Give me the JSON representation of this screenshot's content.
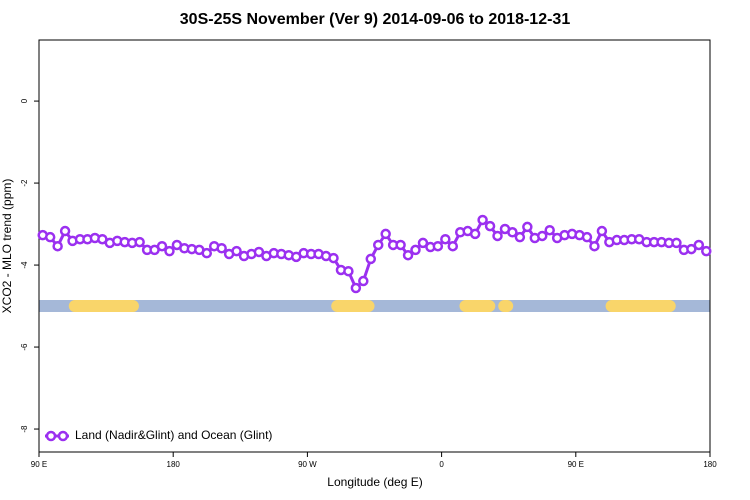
{
  "chart_data": {
    "type": "line",
    "title": "30S-25S November (Ver 9)   2014-09-06 to 2018-12-31",
    "x_label": "Longitude (deg E)",
    "y_label": "XCO2 - MLO trend (ppm)",
    "xlim": [
      90,
      540
    ],
    "ylim": [
      -8.56,
      1.49
    ],
    "xticks": [
      {
        "value": 90,
        "label": "90 E"
      },
      180,
      {
        "value": 270,
        "label": "90 W"
      },
      {
        "value": 360,
        "label": "0"
      },
      {
        "value": 450,
        "label": "90 E"
      },
      {
        "value": 540,
        "label": "180"
      }
    ],
    "yticks": [
      0,
      -2,
      -4,
      -6,
      -8
    ],
    "legend": "bottom-left",
    "x": [
      92.5,
      97.5,
      102.5,
      107.5,
      112.5,
      117.5,
      122.5,
      127.5,
      132.5,
      137.5,
      142.5,
      147.5,
      152.5,
      157.5,
      162.5,
      167.5,
      172.5,
      177.5,
      182.5,
      187.5,
      192.5,
      197.5,
      202.5,
      207.5,
      212.5,
      217.5,
      222.5,
      227.5,
      232.5,
      237.5,
      242.5,
      247.5,
      252.5,
      257.5,
      262.5,
      267.5,
      272.5,
      277.5,
      282.5,
      287.5,
      292.5,
      297.5,
      302.5,
      307.5,
      312.5,
      317.5,
      322.5,
      327.5,
      332.5,
      337.5,
      342.5,
      347.5,
      352.5,
      357.5,
      362.5,
      367.5,
      372.5,
      377.5,
      382.5,
      387.5,
      392.5,
      397.5,
      402.5,
      407.5,
      412.5,
      417.5,
      422.5,
      427.5,
      432.5,
      437.5,
      442.5,
      447.5,
      452.5,
      457.5,
      462.5,
      467.5,
      472.5,
      477.5,
      482.5,
      487.5,
      492.5,
      497.5,
      502.5,
      507.5,
      512.5,
      517.5,
      522.5,
      527.5,
      532.5,
      537.5
    ],
    "series": [
      {
        "name": "Land (Nadir&Glint) and Ocean (Glint)",
        "color": "#9b30f0",
        "values": [
          -3.27,
          -3.32,
          -3.54,
          -3.17,
          -3.41,
          -3.37,
          -3.37,
          -3.34,
          -3.37,
          -3.46,
          -3.41,
          -3.44,
          -3.46,
          -3.44,
          -3.63,
          -3.63,
          -3.54,
          -3.66,
          -3.51,
          -3.59,
          -3.61,
          -3.63,
          -3.71,
          -3.54,
          -3.59,
          -3.73,
          -3.66,
          -3.78,
          -3.73,
          -3.68,
          -3.78,
          -3.71,
          -3.73,
          -3.76,
          -3.8,
          -3.71,
          -3.73,
          -3.73,
          -3.78,
          -3.83,
          -4.12,
          -4.15,
          -4.56,
          -4.39,
          -3.85,
          -3.51,
          -3.24,
          -3.51,
          -3.51,
          -3.76,
          -3.63,
          -3.46,
          -3.56,
          -3.54,
          -3.37,
          -3.54,
          -3.2,
          -3.17,
          -3.24,
          -2.9,
          -3.05,
          -3.29,
          -3.12,
          -3.2,
          -3.32,
          -3.07,
          -3.34,
          -3.29,
          -3.15,
          -3.34,
          -3.27,
          -3.24,
          -3.27,
          -3.32,
          -3.54,
          -3.17,
          -3.44,
          -3.39,
          -3.39,
          -3.37,
          -3.37,
          -3.44,
          -3.44,
          -3.44,
          -3.46,
          -3.46,
          -3.63,
          -3.61,
          -3.51,
          -3.66
        ]
      }
    ],
    "surface_band": {
      "y": -5,
      "ocean_color": "#a5b8d8",
      "land_color": "#f9d56a",
      "land": [
        [
          114,
          153
        ],
        [
          290,
          311
        ],
        [
          376,
          392
        ],
        [
          402,
          404
        ],
        [
          474,
          513
        ]
      ]
    }
  }
}
